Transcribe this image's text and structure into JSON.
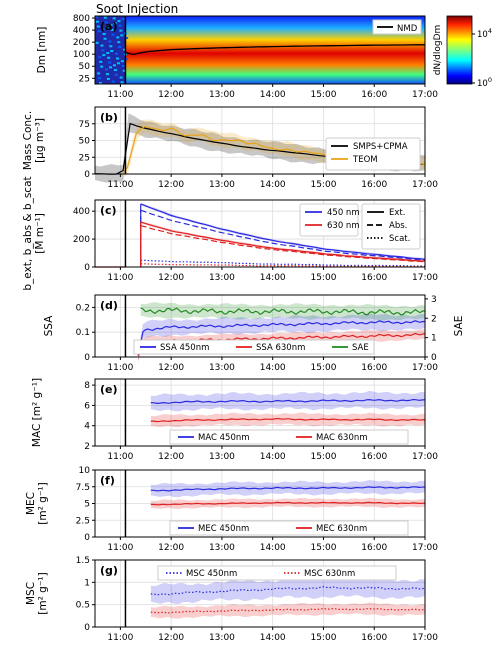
{
  "figure": {
    "time_ticks": [
      "11:00",
      "12:00",
      "13:00",
      "14:00",
      "15:00",
      "16:00",
      "17:00"
    ],
    "annotation": "Soot Injection"
  },
  "chart_data": [
    {
      "id": "a",
      "type": "heatmap",
      "panel_label": "(a)",
      "ylabel": "Dm [nm]",
      "ylog": true,
      "ylim": [
        18,
        900
      ],
      "yticks": [
        25,
        50,
        100,
        200,
        400,
        800
      ],
      "xlim": [
        10.5,
        17.0
      ],
      "colorbar": {
        "label": "dN/dlogDm",
        "ticks": [
          "10^0",
          "10^4"
        ]
      },
      "legend": [
        "NMD"
      ],
      "nmd": {
        "x": [
          11.1,
          11.2,
          11.5,
          12.0,
          13.0,
          14.0,
          15.0,
          16.0,
          17.0
        ],
        "y": [
          110,
          95,
          115,
          130,
          145,
          155,
          162,
          168,
          172
        ]
      }
    },
    {
      "id": "b",
      "type": "line",
      "panel_label": "(b)",
      "ylabel": "Mass Conc. [µg m⁻³]",
      "ylim": [
        0,
        100
      ],
      "yticks": [
        0,
        25,
        50,
        75
      ],
      "legend_loc": "upper right",
      "series": [
        {
          "name": "SMPS+CPMA",
          "color": "#000000",
          "band": 12,
          "x": [
            10.5,
            11.05,
            11.1,
            11.2,
            11.5,
            12.0,
            12.5,
            13.0,
            13.5,
            14.0,
            14.5,
            15.0,
            15.5,
            16.0,
            16.5,
            17.0
          ],
          "y": [
            0,
            0,
            80,
            75,
            68,
            60,
            52,
            46,
            40,
            35,
            31,
            27,
            23,
            20,
            17,
            15
          ]
        },
        {
          "name": "TEOM",
          "color": "#e8a317",
          "band": 10,
          "x": [
            11.05,
            11.15,
            11.3,
            11.5,
            11.8,
            12.0,
            12.3,
            12.6,
            12.8,
            13.0,
            13.3,
            13.5,
            13.7,
            14.0,
            14.3,
            14.5,
            14.8,
            15.0,
            15.2,
            15.4,
            16.5,
            16.8,
            17.0
          ],
          "y": [
            0,
            10,
            60,
            73,
            65,
            68,
            55,
            60,
            52,
            51,
            50,
            45,
            44,
            38,
            37,
            33,
            31,
            28,
            25,
            26,
            15,
            16,
            15
          ]
        }
      ]
    },
    {
      "id": "c",
      "type": "line",
      "panel_label": "(c)",
      "ylabel": "b_ext, b_abs & b_scat [M m⁻¹]",
      "ylim": [
        0,
        480
      ],
      "yticks": [
        0,
        200,
        400
      ],
      "legend_colors": [
        "450 nm",
        "630 nm"
      ],
      "legend_styles": [
        "Ext.",
        "Abs.",
        "Scat."
      ],
      "series": [
        {
          "name": "Ext. 450 nm",
          "color": "#2a2ae0",
          "style": "solid",
          "x": [
            11.4,
            12.0,
            13.0,
            14.0,
            15.0,
            16.0,
            17.0
          ],
          "y": [
            450,
            370,
            270,
            190,
            130,
            90,
            55
          ]
        },
        {
          "name": "Abs. 450 nm",
          "color": "#2a2ae0",
          "style": "dashed",
          "x": [
            11.4,
            12.0,
            13.0,
            14.0,
            15.0,
            16.0,
            17.0
          ],
          "y": [
            405,
            335,
            245,
            170,
            115,
            80,
            50
          ]
        },
        {
          "name": "Scat. 450 nm",
          "color": "#2a2ae0",
          "style": "dotted",
          "x": [
            11.4,
            12.0,
            13.0,
            14.0,
            15.0,
            16.0,
            17.0
          ],
          "y": [
            48,
            40,
            30,
            21,
            15,
            10,
            7
          ]
        },
        {
          "name": "Ext. 630 nm",
          "color": "#e02020",
          "style": "solid",
          "x": [
            11.4,
            12.0,
            13.0,
            14.0,
            15.0,
            16.0,
            17.0
          ],
          "y": [
            320,
            260,
            190,
            135,
            95,
            65,
            42
          ]
        },
        {
          "name": "Abs. 630 nm",
          "color": "#e02020",
          "style": "dashed",
          "x": [
            11.4,
            12.0,
            13.0,
            14.0,
            15.0,
            16.0,
            17.0
          ],
          "y": [
            295,
            240,
            175,
            125,
            88,
            60,
            38
          ]
        },
        {
          "name": "Scat. 630 nm",
          "color": "#e02020",
          "style": "dotted",
          "x": [
            11.4,
            12.0,
            13.0,
            14.0,
            15.0,
            16.0,
            17.0
          ],
          "y": [
            22,
            18,
            13,
            9,
            6,
            4,
            3
          ]
        }
      ]
    },
    {
      "id": "d",
      "type": "line",
      "panel_label": "(d)",
      "ylabel": "SSA",
      "ylim": [
        0,
        0.25
      ],
      "yticks": [
        0.0,
        0.1,
        0.2
      ],
      "y2label": "SAE",
      "y2lim": [
        0,
        3.2
      ],
      "y2ticks": [
        0,
        1,
        2,
        3
      ],
      "series": [
        {
          "name": "SSA 450nm",
          "color": "#2a2ae0",
          "axis": "left",
          "band": 0.03,
          "x": [
            11.35,
            11.45,
            12.0,
            13.0,
            14.0,
            15.0,
            16.0,
            17.0
          ],
          "y": [
            0.0,
            0.11,
            0.12,
            0.125,
            0.13,
            0.135,
            0.14,
            0.14
          ]
        },
        {
          "name": "SSA 630nm",
          "color": "#e02020",
          "axis": "left",
          "band": 0.02,
          "x": [
            11.35,
            11.45,
            12.0,
            13.0,
            14.0,
            15.0,
            16.0,
            17.0
          ],
          "y": [
            0.0,
            0.06,
            0.065,
            0.07,
            0.075,
            0.08,
            0.085,
            0.09
          ]
        },
        {
          "name": "SAE",
          "color": "#228b22",
          "axis": "right",
          "band": 0.35,
          "x": [
            11.4,
            12.0,
            13.0,
            14.0,
            15.0,
            16.0,
            17.0
          ],
          "y": [
            2.4,
            2.4,
            2.35,
            2.35,
            2.35,
            2.3,
            2.3
          ]
        }
      ]
    },
    {
      "id": "e",
      "type": "line",
      "panel_label": "(e)",
      "ylabel": "MAC [m² g⁻¹]",
      "ylim": [
        2,
        8.6
      ],
      "yticks": [
        2,
        4,
        6,
        8
      ],
      "series": [
        {
          "name": "MAC 450nm",
          "color": "#2a2ae0",
          "band": 0.75,
          "x": [
            11.6,
            12.0,
            13.0,
            14.0,
            15.0,
            16.0,
            17.0
          ],
          "y": [
            6.2,
            6.3,
            6.4,
            6.4,
            6.45,
            6.5,
            6.5
          ]
        },
        {
          "name": "MAC 630nm",
          "color": "#e02020",
          "band": 0.55,
          "x": [
            11.6,
            12.0,
            13.0,
            14.0,
            15.0,
            16.0,
            17.0
          ],
          "y": [
            4.4,
            4.5,
            4.6,
            4.65,
            4.6,
            4.6,
            4.55
          ]
        }
      ]
    },
    {
      "id": "f",
      "type": "line",
      "panel_label": "(f)",
      "ylabel": "MEC [m² g⁻¹]",
      "ylim": [
        0,
        10
      ],
      "yticks": [
        0.0,
        2.5,
        5.0,
        7.5,
        10.0
      ],
      "series": [
        {
          "name": "MEC 450nm",
          "color": "#2a2ae0",
          "band": 0.9,
          "x": [
            11.6,
            12.0,
            13.0,
            14.0,
            15.0,
            16.0,
            17.0
          ],
          "y": [
            6.9,
            7.0,
            7.2,
            7.3,
            7.3,
            7.4,
            7.4
          ]
        },
        {
          "name": "MEC 630nm",
          "color": "#e02020",
          "band": 0.6,
          "x": [
            11.6,
            12.0,
            13.0,
            14.0,
            15.0,
            16.0,
            17.0
          ],
          "y": [
            4.8,
            4.9,
            5.0,
            5.1,
            5.1,
            5.1,
            5.0
          ]
        }
      ]
    },
    {
      "id": "g",
      "type": "line",
      "panel_label": "(g)",
      "ylabel": "MSC [m² g⁻¹]",
      "ylim": [
        0,
        1.5
      ],
      "yticks": [
        0.0,
        0.5,
        1.0,
        1.5
      ],
      "series": [
        {
          "name": "MSC 450nm",
          "color": "#2a2ae0",
          "style": "dotted",
          "band": 0.2,
          "x": [
            11.6,
            12.0,
            13.0,
            14.0,
            15.0,
            16.0,
            17.0
          ],
          "y": [
            0.72,
            0.75,
            0.8,
            0.85,
            0.88,
            0.87,
            0.85
          ]
        },
        {
          "name": "MSC 630nm",
          "color": "#e02020",
          "style": "dotted",
          "band": 0.12,
          "x": [
            11.6,
            12.0,
            13.0,
            14.0,
            15.0,
            16.0,
            17.0
          ],
          "y": [
            0.32,
            0.33,
            0.36,
            0.38,
            0.4,
            0.4,
            0.38
          ]
        }
      ]
    }
  ]
}
